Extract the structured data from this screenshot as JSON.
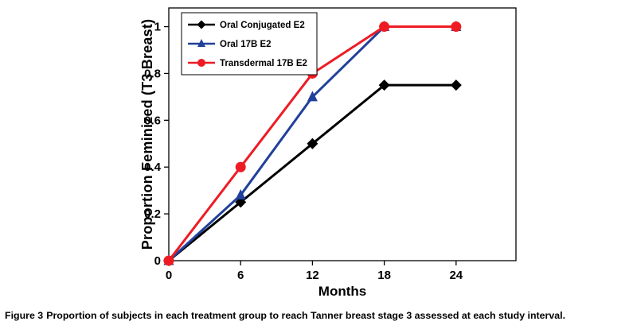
{
  "chart_data": {
    "type": "line",
    "title": "",
    "xlabel": "Months",
    "ylabel": "Proportion Feminized (T3 Breast)",
    "x": [
      0,
      6,
      12,
      18,
      24
    ],
    "series": [
      {
        "name": "Oral Conjugated E2",
        "values": [
          0,
          0.25,
          0.5,
          0.75,
          0.75
        ],
        "color": "#000000",
        "marker": "diamond"
      },
      {
        "name": "Oral 17B E2",
        "values": [
          0,
          0.28,
          0.7,
          1,
          1
        ],
        "color": "#21409a",
        "marker": "triangle"
      },
      {
        "name": "Transdermal 17B E2",
        "values": [
          0,
          0.4,
          0.8,
          1,
          1
        ],
        "color": "#ee1b24",
        "marker": "circle"
      }
    ],
    "xticks": [
      0,
      6,
      12,
      18,
      24
    ],
    "yticks": [
      0,
      0.2,
      0.4,
      0.6,
      0.8,
      1
    ],
    "xlim": [
      0,
      29
    ],
    "ylim": [
      0,
      1.08
    ],
    "grid": false,
    "legend_position": "top-left"
  },
  "caption": {
    "label": "Figure 3",
    "text": "Proportion of subjects in each treatment group to reach Tanner breast stage 3 assessed at each study interval."
  }
}
